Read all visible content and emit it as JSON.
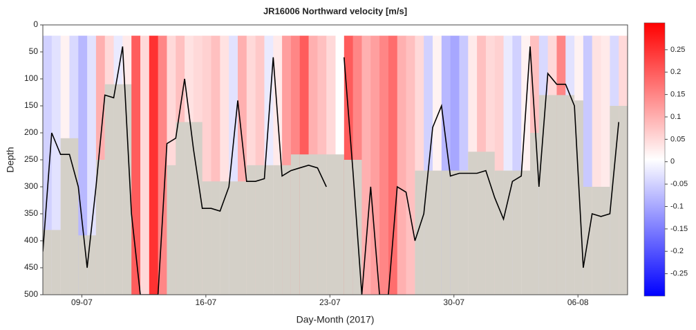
{
  "chart_data": {
    "type": "heatmap",
    "title": "JR16006 Northward velocity [m/s]",
    "xlabel": "Day-Month (2017)",
    "ylabel": "Depth",
    "x": [
      6.8,
      7.3,
      7.8,
      8.3,
      8.8,
      9.3,
      9.8,
      10.3,
      10.8,
      11.3,
      11.8,
      12.3,
      12.8,
      13.3,
      13.8,
      14.3,
      14.8,
      15.3,
      15.8,
      16.3,
      16.8,
      17.3,
      17.8,
      18.3,
      18.8,
      19.3,
      19.8,
      20.3,
      20.8,
      21.3,
      21.8,
      22.3,
      22.8,
      23.3,
      23.8,
      24.3,
      24.8,
      25.3,
      25.8,
      26.3,
      26.8,
      27.3,
      27.8,
      28.3,
      28.8,
      29.3,
      29.8,
      30.3,
      30.8,
      31.3,
      31.8,
      32.3,
      32.8,
      33.3,
      33.8,
      34.3,
      34.8,
      35.3,
      35.8,
      36.3,
      36.8,
      37.3,
      37.8,
      38.3,
      38.8,
      39.3
    ],
    "velocity": [
      -0.05,
      -0.03,
      0.02,
      -0.04,
      -0.08,
      -0.03,
      0.1,
      0.05,
      -0.02,
      0.03,
      0.2,
      0.05,
      0.25,
      0.15,
      0.05,
      0.08,
      0.04,
      0.05,
      0.06,
      0.08,
      0.04,
      -0.03,
      0.1,
      0.05,
      0.07,
      -0.02,
      0.03,
      0.12,
      0.15,
      0.2,
      0.1,
      0.08,
      0.05,
      null,
      0.2,
      0.15,
      0.1,
      0.12,
      0.15,
      0.18,
      0.1,
      0.08,
      0.05,
      -0.05,
      0.02,
      -0.08,
      -0.1,
      -0.06,
      0.03,
      0.08,
      0.05,
      0.06,
      -0.02,
      -0.05,
      0.02,
      0.08,
      -0.04,
      0.05,
      0.15,
      -0.03,
      0.02,
      -0.06,
      0.04,
      0.03,
      -0.04,
      0.05
    ],
    "bottom_depth": [
      380,
      380,
      210,
      210,
      390,
      390,
      250,
      110,
      110,
      110,
      null,
      null,
      null,
      null,
      260,
      180,
      180,
      180,
      290,
      290,
      290,
      290,
      290,
      260,
      260,
      260,
      260,
      260,
      240,
      240,
      240,
      240,
      240,
      240,
      250,
      250,
      null,
      null,
      null,
      null,
      null,
      null,
      270,
      270,
      270,
      270,
      270,
      270,
      235,
      235,
      235,
      270,
      270,
      270,
      270,
      200,
      130,
      130,
      130,
      130,
      140,
      300,
      300,
      300,
      150,
      150
    ],
    "track_depth": [
      420,
      200,
      240,
      240,
      300,
      450,
      300,
      130,
      135,
      40,
      350,
      500,
      500,
      500,
      220,
      210,
      100,
      230,
      340,
      340,
      345,
      300,
      140,
      290,
      290,
      285,
      60,
      280,
      270,
      265,
      260,
      265,
      300,
      null,
      60,
      270,
      500,
      300,
      500,
      500,
      300,
      310,
      400,
      350,
      190,
      150,
      280,
      275,
      275,
      275,
      270,
      320,
      360,
      290,
      280,
      40,
      300,
      90,
      110,
      110,
      150,
      450,
      350,
      355,
      350,
      180
    ],
    "bin_start_depth": 20,
    "xlim": [
      6.8,
      39.8
    ],
    "xticks": [
      {
        "value": 9,
        "label": "09-07"
      },
      {
        "value": 16,
        "label": "16-07"
      },
      {
        "value": 23,
        "label": "23-07"
      },
      {
        "value": 30,
        "label": "30-07"
      },
      {
        "value": 37,
        "label": "06-08"
      }
    ],
    "ylim": [
      500,
      0
    ],
    "yticks": [
      0,
      50,
      100,
      150,
      200,
      250,
      300,
      350,
      400,
      450,
      500
    ],
    "clim": [
      -0.3,
      0.31
    ],
    "cticks": [
      -0.25,
      -0.2,
      -0.15,
      -0.1,
      -0.05,
      0,
      0.05,
      0.1,
      0.15,
      0.2,
      0.25
    ],
    "colormap": [
      "#0000ff",
      "#ffffff",
      "#ff0000"
    ],
    "bottom_color": "#d4d0c8",
    "track_color": "#000000"
  }
}
